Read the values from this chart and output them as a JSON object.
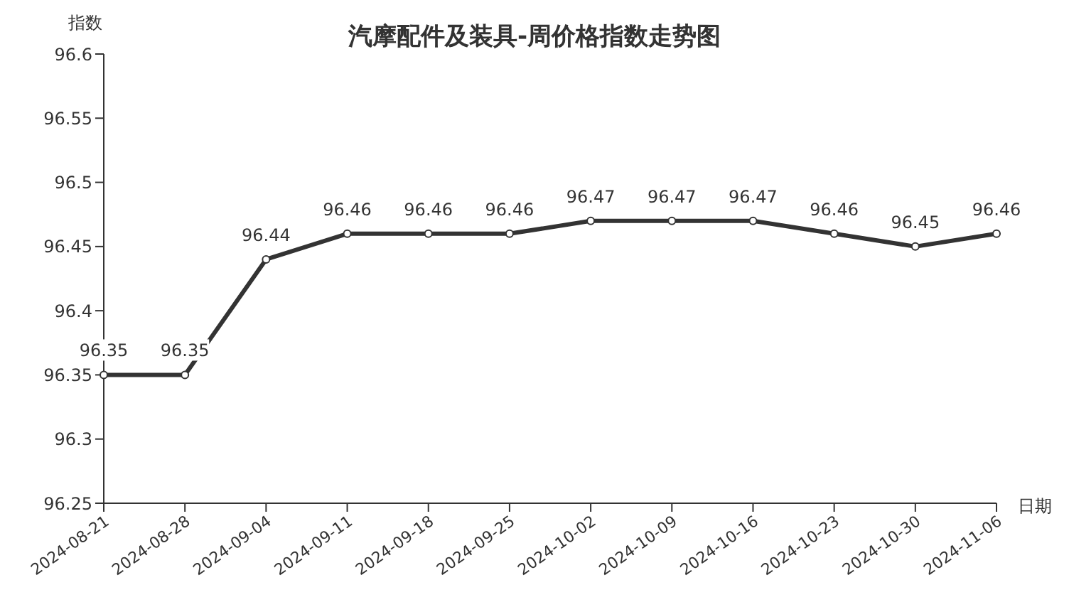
{
  "chart_data": {
    "type": "line",
    "title": "汽摩配件及装具-周价格指数走势图",
    "xlabel": "日期",
    "ylabel": "指数",
    "categories": [
      "2024-08-21",
      "2024-08-28",
      "2024-09-04",
      "2024-09-11",
      "2024-09-18",
      "2024-09-25",
      "2024-10-02",
      "2024-10-09",
      "2024-10-16",
      "2024-10-23",
      "2024-10-30",
      "2024-11-06"
    ],
    "series": [
      {
        "color": "#333333",
        "values": [
          96.35,
          96.35,
          96.44,
          96.46,
          96.46,
          96.46,
          96.47,
          96.47,
          96.47,
          96.46,
          96.45,
          96.46
        ]
      }
    ],
    "ylim": [
      96.25,
      96.6
    ],
    "yticks": [
      96.25,
      96.3,
      96.35,
      96.4,
      96.45,
      96.5,
      96.55,
      96.6
    ],
    "data_labels": true,
    "marker": "circle",
    "line_style": "solid",
    "grid": false,
    "legend": false
  }
}
